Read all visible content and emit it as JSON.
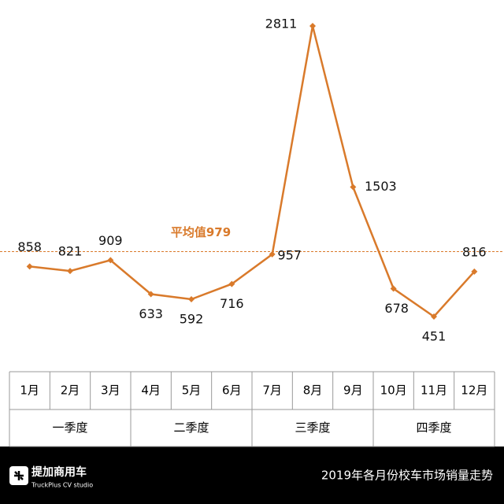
{
  "chart_data": {
    "type": "line",
    "categories": [
      "1月",
      "2月",
      "3月",
      "4月",
      "5月",
      "6月",
      "7月",
      "8月",
      "9月",
      "10月",
      "11月",
      "12月"
    ],
    "groups": [
      "一季度",
      "二季度",
      "三季度",
      "四季度"
    ],
    "series": [
      {
        "color": "#d97a2b",
        "values": [
          858,
          821,
          909,
          633,
          592,
          716,
          957,
          2811,
          1503,
          678,
          451,
          816
        ]
      }
    ],
    "average": {
      "value": 979,
      "label": "平均值979"
    },
    "title": "2019年各月份校车市场销量走势",
    "logo": {
      "name": "提加商用车",
      "subtitle": "TruckPlus CV studio"
    }
  }
}
